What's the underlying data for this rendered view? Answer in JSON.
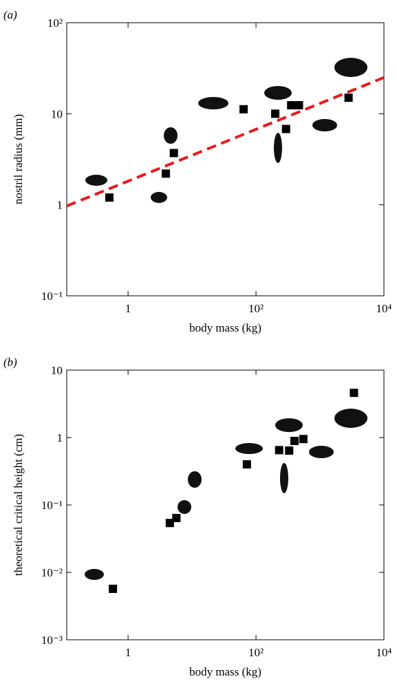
{
  "chart_data": [
    {
      "type": "scatter",
      "panel": "(a)",
      "x_label": "body mass (kg)",
      "y_label": "nostril radius (mm)",
      "log_x": true,
      "log_y": true,
      "xlim": [
        0.11,
        10000
      ],
      "ylim": [
        0.1,
        100
      ],
      "xticks": [
        1,
        {
          "value": 100,
          "label": "10²"
        },
        {
          "value": 10000,
          "label": "10⁴"
        }
      ],
      "yticks": [
        {
          "value": 0.1,
          "label": "10⁻¹"
        },
        1,
        10,
        {
          "value": 100,
          "label": "10²"
        }
      ],
      "series": [
        {
          "style": "square",
          "color": "#000000",
          "x": [
            0.51,
            3.9,
            5.2,
            64,
            200,
            295,
            355,
            470,
            2800
          ],
          "values": [
            1.2,
            2.2,
            3.7,
            11.2,
            10,
            6.8,
            12.4,
            12.4,
            15
          ]
        },
        {
          "style": "dashed-line",
          "color": "#e8191b",
          "x": [
            0.11,
            10000
          ],
          "values": [
            0.97,
            25
          ]
        }
      ]
    },
    {
      "type": "scatter",
      "panel": "(b)",
      "x_label": "body mass (kg)",
      "y_label": "theoretical critical height (cm)",
      "log_x": true,
      "log_y": true,
      "xlim": [
        0.11,
        10000
      ],
      "ylim": [
        0.001,
        10
      ],
      "xticks": [
        1,
        {
          "value": 100,
          "label": "10²"
        },
        {
          "value": 10000,
          "label": "10⁴"
        }
      ],
      "yticks": [
        {
          "value": 0.001,
          "label": "10⁻³"
        },
        {
          "value": 0.01,
          "label": "10⁻²"
        },
        {
          "value": 0.1,
          "label": "10⁻¹"
        },
        1,
        10
      ],
      "series": [
        {
          "style": "square",
          "color": "#000000",
          "x": [
            0.58,
            4.5,
            5.7,
            72,
            230,
            330,
            400,
            550,
            3400
          ],
          "values": [
            0.0057,
            0.054,
            0.064,
            0.4,
            0.65,
            0.64,
            0.89,
            0.95,
            4.6
          ]
        }
      ]
    }
  ]
}
